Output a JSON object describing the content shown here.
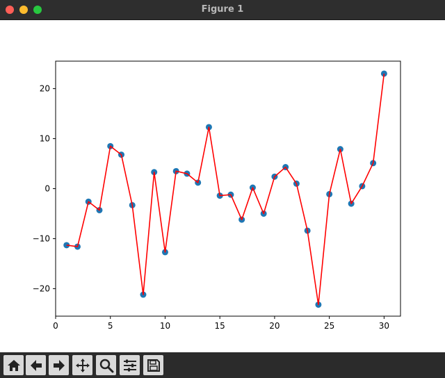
{
  "window": {
    "title": "Figure 1"
  },
  "toolbar": {
    "buttons": [
      {
        "icon": "home-icon"
      },
      {
        "icon": "back-arrow-icon"
      },
      {
        "icon": "forward-arrow-icon"
      },
      {
        "icon": "pan-icon"
      },
      {
        "icon": "zoom-icon"
      },
      {
        "icon": "configure-subplots-icon"
      },
      {
        "icon": "save-icon"
      }
    ]
  },
  "chart_data": {
    "type": "line",
    "title": "",
    "xlabel": "",
    "ylabel": "",
    "xlim": [
      0,
      31.5
    ],
    "ylim": [
      -25.5,
      25.5
    ],
    "xticks": [
      0,
      5,
      10,
      15,
      20,
      25,
      30
    ],
    "yticks": [
      -20,
      -10,
      0,
      10,
      20
    ],
    "grid": false,
    "x": [
      1,
      2,
      3,
      4,
      5,
      6,
      7,
      8,
      9,
      10,
      11,
      12,
      13,
      14,
      15,
      16,
      17,
      18,
      19,
      20,
      21,
      22,
      23,
      24,
      25,
      26,
      27,
      28,
      29,
      30
    ],
    "series": [
      {
        "style": "line",
        "color": "#ff0000",
        "values": [
          -11.3,
          -11.6,
          -2.6,
          -4.3,
          8.5,
          6.8,
          -3.3,
          -21.2,
          3.3,
          -12.7,
          3.5,
          3.0,
          1.2,
          12.3,
          -1.4,
          -1.2,
          -6.2,
          0.2,
          -5.0,
          2.4,
          4.3,
          1.0,
          -8.4,
          -23.2,
          -1.1,
          7.9,
          -3.0,
          0.5,
          5.1,
          23.0
        ]
      },
      {
        "style": "scatter",
        "color": "#1f77b4",
        "values": [
          -11.3,
          -11.6,
          -2.6,
          -4.3,
          8.5,
          6.8,
          -3.3,
          -21.2,
          3.3,
          -12.7,
          3.5,
          3.0,
          1.2,
          12.3,
          -1.4,
          -1.2,
          -6.2,
          0.2,
          -5.0,
          2.4,
          4.3,
          1.0,
          -8.4,
          -23.2,
          -1.1,
          7.9,
          -3.0,
          0.5,
          5.1,
          23.0
        ]
      }
    ]
  }
}
